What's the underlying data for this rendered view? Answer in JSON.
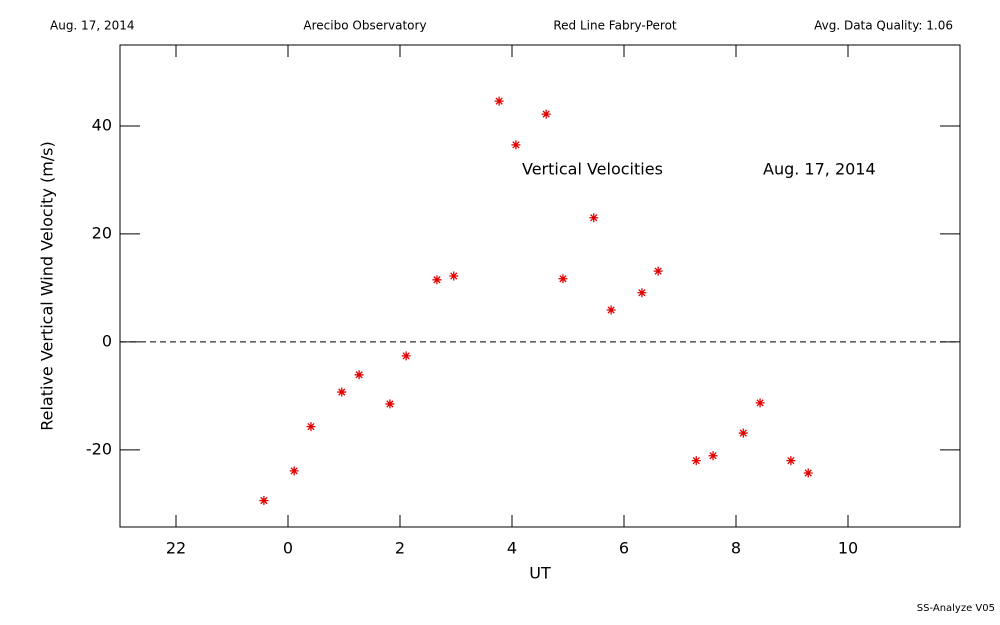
{
  "header": {
    "date": "Aug. 17, 2014",
    "site": "Arecibo Observatory",
    "instrument": "Red Line Fabry-Perot",
    "quality": "Avg. Data Quality: 1.06"
  },
  "footer": "SS-Analyze V05",
  "chart_data": {
    "type": "scatter",
    "xlabel": "UT",
    "ylabel": "Relative Vertical Wind Velocity (m/s)",
    "annotations": [
      "Vertical Velocities",
      "Aug. 17, 2014"
    ],
    "xlim": [
      -3,
      12
    ],
    "xticks": [
      {
        "value": -2,
        "label": "22"
      },
      0,
      2,
      4,
      6,
      8,
      10
    ],
    "ylim": [
      -34.3,
      55
    ],
    "yticks": [
      -20,
      0,
      20,
      40
    ],
    "reference_line": 0,
    "color": "#e00000",
    "x": [
      -0.43,
      0.11,
      0.41,
      0.96,
      1.27,
      1.82,
      2.11,
      2.66,
      2.96,
      3.77,
      4.07,
      4.61,
      4.91,
      5.46,
      5.77,
      6.32,
      6.61,
      7.29,
      7.59,
      8.13,
      8.43,
      8.98,
      9.29
    ],
    "values": [
      -29.4,
      -23.9,
      -15.7,
      -9.3,
      -6.1,
      -11.5,
      -2.6,
      11.5,
      12.2,
      44.6,
      36.5,
      42.2,
      11.7,
      23.0,
      5.9,
      9.1,
      13.1,
      -22.0,
      -21.1,
      -16.9,
      -11.3,
      -22.0,
      -24.3
    ]
  }
}
